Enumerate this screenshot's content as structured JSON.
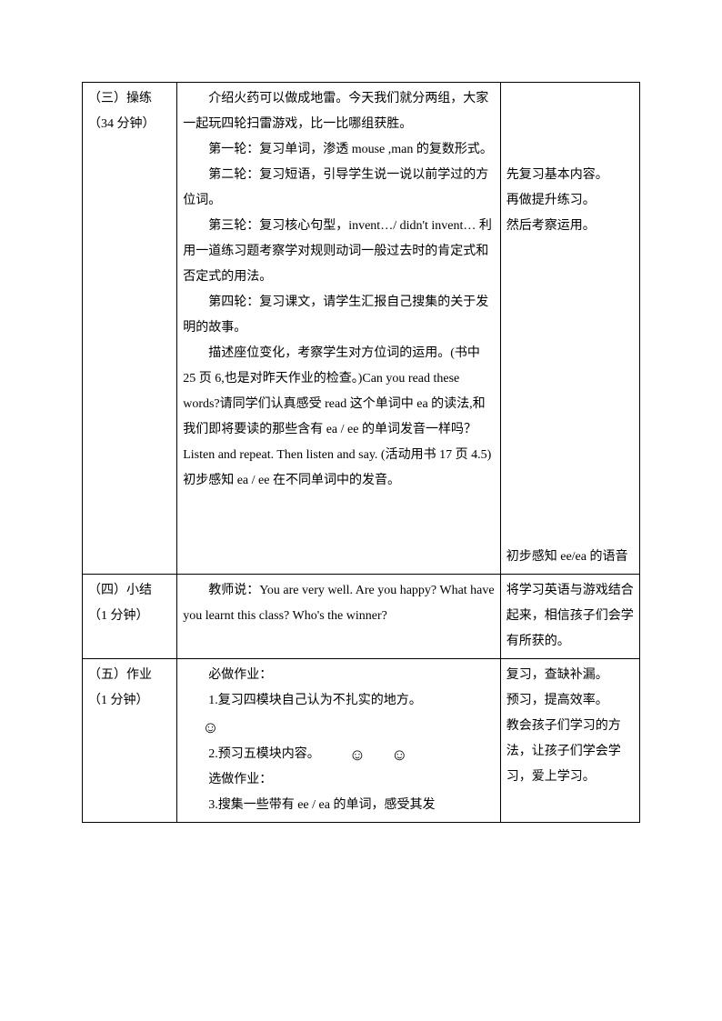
{
  "rows": [
    {
      "c1": [
        "（三）操练",
        "（34 分钟）"
      ],
      "c2": [
        {
          "t": "介绍火药可以做成地雷。今天我们就分两组，大家一起玩四轮扫雷游戏，比一比哪组获胜。",
          "indent": true
        },
        {
          "t": "第一轮：复习单词，渗透 mouse ,man 的复数形式。",
          "indent": true
        },
        {
          "t": "第二轮：复习短语，引导学生说一说以前学过的方位词。",
          "indent": true
        },
        {
          "t": "第三轮：复习核心句型，invent…/ didn't invent… 利用一道练习题考察学对规则动词一般过去时的肯定式和否定式的用法。",
          "indent": true
        },
        {
          "t": "第四轮：复习课文，请学生汇报自己搜集的关于发明的故事。",
          "indent": true
        },
        {
          "t": "描述座位变化，考察学生对方位词的运用。(书中 25 页 6,也是对昨天作业的检查。)Can you read these words?请同学们认真感受 read 这个单词中 ea 的读法,和我们即将要读的那些含有 ea / ee 的单词发音一样吗？ Listen and repeat. Then listen and say. (活动用书 17 页 4.5)初步感知 ea / ee 在不同单词中的发音。",
          "indent": true
        }
      ],
      "c3": [
        "",
        "",
        "",
        "先复习基本内容。",
        "再做提升练习。",
        "然后考察运用。",
        "",
        "",
        "",
        "",
        "",
        "",
        "",
        "",
        "",
        "",
        "",
        "",
        "初步感知 ee/ea 的语音"
      ]
    },
    {
      "c1": [
        "（四）小结",
        "（1 分钟）"
      ],
      "c2": [
        {
          "t": "教师说：You are very well. Are you happy? What have you learnt this class? Who's the winner?",
          "indent": true
        }
      ],
      "c3": [
        "将学习英语与游戏结合起来，相信孩子们会学有所获的。"
      ]
    },
    {
      "c1": [
        "（五）作业",
        "（1 分钟）"
      ],
      "c2": [
        {
          "t": "必做作业：",
          "indent": true
        },
        {
          "t": "1.复习四模块自己认为不扎实的地方。",
          "indent": true
        },
        {
          "smiley_line": 1
        },
        {
          "t": "2.预习五模块内容。",
          "indent": true,
          "smileys": 2
        },
        {
          "t": "选做作业：",
          "indent": true
        },
        {
          "t": "3.搜集一些带有 ee / ea 的单词，感受其发",
          "indent": true
        }
      ],
      "c3": [
        "复习，查缺补漏。",
        "预习，提高效率。",
        "教会孩子们学习的方法，让孩子们学会学习，爱上学习。"
      ]
    }
  ],
  "smiley_glyph": "☺"
}
